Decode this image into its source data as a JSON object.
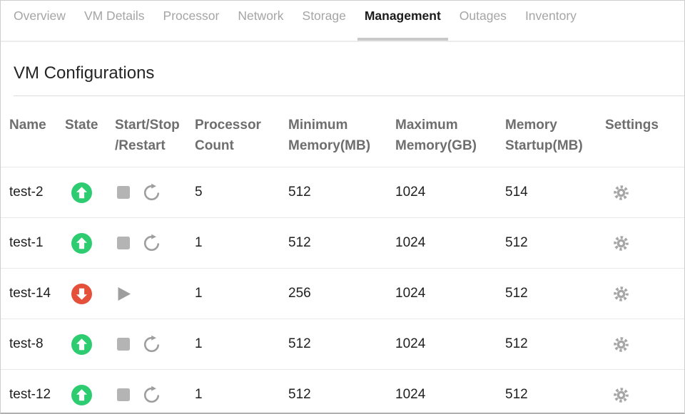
{
  "tabs": {
    "items": [
      {
        "label": "Overview",
        "active": false
      },
      {
        "label": "VM Details",
        "active": false
      },
      {
        "label": "Processor",
        "active": false
      },
      {
        "label": "Network",
        "active": false
      },
      {
        "label": "Storage",
        "active": false
      },
      {
        "label": "Management",
        "active": true
      },
      {
        "label": "Outages",
        "active": false
      },
      {
        "label": "Inventory",
        "active": false
      }
    ]
  },
  "page": {
    "title": "VM Configurations"
  },
  "table": {
    "columns": [
      {
        "label": "Name"
      },
      {
        "label": "State"
      },
      {
        "label": "Start/Stop\n/Restart"
      },
      {
        "label": "Processor\nCount"
      },
      {
        "label": "Minimum\nMemory(MB)"
      },
      {
        "label": "Maximum\nMemory(GB)"
      },
      {
        "label": "Memory\nStartup(MB)"
      },
      {
        "label": "Settings"
      }
    ],
    "rows": [
      {
        "name": "test-2",
        "state": "running",
        "state_icon": "arrow-up-circle",
        "controls": [
          "stop",
          "restart"
        ],
        "processor_count": "5",
        "min_memory_mb": "512",
        "max_memory_gb": "1024",
        "memory_startup_mb": "514",
        "settings_icon": "gear"
      },
      {
        "name": "test-1",
        "state": "running",
        "state_icon": "arrow-up-circle",
        "controls": [
          "stop",
          "restart"
        ],
        "processor_count": "1",
        "min_memory_mb": "512",
        "max_memory_gb": "1024",
        "memory_startup_mb": "512",
        "settings_icon": "gear"
      },
      {
        "name": "test-14",
        "state": "stopped",
        "state_icon": "arrow-down-circle",
        "controls": [
          "play"
        ],
        "processor_count": "1",
        "min_memory_mb": "256",
        "max_memory_gb": "1024",
        "memory_startup_mb": "512",
        "settings_icon": "gear"
      },
      {
        "name": "test-8",
        "state": "running",
        "state_icon": "arrow-up-circle",
        "controls": [
          "stop",
          "restart"
        ],
        "processor_count": "1",
        "min_memory_mb": "512",
        "max_memory_gb": "1024",
        "memory_startup_mb": "512",
        "settings_icon": "gear"
      },
      {
        "name": "test-12",
        "state": "running",
        "state_icon": "arrow-up-circle",
        "controls": [
          "stop",
          "restart"
        ],
        "processor_count": "1",
        "min_memory_mb": "512",
        "max_memory_gb": "1024",
        "memory_startup_mb": "512",
        "settings_icon": "gear"
      }
    ]
  },
  "colors": {
    "state_up": "#2ecc71",
    "state_down": "#e4503a",
    "stop_gray": "#b4b4b4",
    "control_gray": "#9e9e9e",
    "gear_gray": "#a6a6a6",
    "tab_underline": "#c9c9c9"
  }
}
